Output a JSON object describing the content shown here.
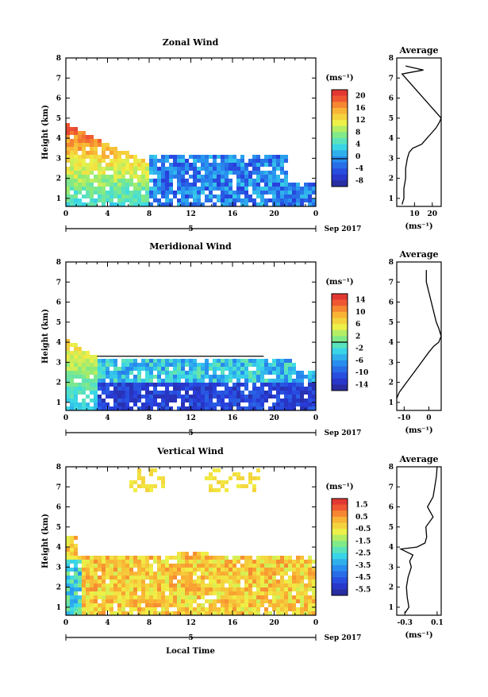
{
  "date_label": "Sep 2017",
  "day_label": "5",
  "xlabel": "Local Time",
  "chart_data": [
    {
      "type": "heatmap",
      "title": "Zonal Wind",
      "ylabel": "Height (km)",
      "xlabel": "",
      "x_ticks": [
        "0",
        "4",
        "8",
        "12",
        "16",
        "20",
        "0"
      ],
      "y_ticks": [
        "1",
        "2",
        "3",
        "4",
        "5",
        "6",
        "7",
        "8"
      ],
      "ylim": [
        0.6,
        8.0
      ],
      "xlim_hours": [
        0,
        24
      ],
      "colorbar": {
        "unit": "(ms⁻¹)",
        "ticks": [
          "20",
          "16",
          "12",
          "8",
          "4",
          "0",
          "-4",
          "-8"
        ],
        "range": [
          -10,
          22
        ]
      },
      "description_regions": [
        {
          "from_hour": 0,
          "to_hour": 8,
          "top_km": 4.8,
          "values": "8 to 20"
        },
        {
          "from_hour": 8,
          "to_hour": 20,
          "top_km": 3.5,
          "values": "-8 to 4"
        }
      ],
      "average": {
        "title": "Average",
        "xlabel": "(ms⁻¹)",
        "x_ticks": [
          "10",
          "20"
        ],
        "xlim": [
          0,
          25
        ],
        "heights": [
          0.7,
          1.0,
          1.5,
          2.0,
          2.5,
          3.0,
          3.3,
          3.5,
          3.7,
          4.0,
          4.2,
          4.5,
          4.8,
          5.0,
          7.2,
          7.4,
          7.6
        ],
        "values": [
          3,
          4,
          4,
          5,
          5,
          6,
          7,
          9,
          14,
          17,
          19,
          22,
          24,
          25,
          3,
          15,
          5
        ]
      }
    },
    {
      "type": "heatmap",
      "title": "Meridional Wind",
      "ylabel": "Height (km)",
      "xlabel": "",
      "x_ticks": [
        "0",
        "4",
        "8",
        "12",
        "16",
        "20",
        "0"
      ],
      "y_ticks": [
        "1",
        "2",
        "3",
        "4",
        "5",
        "6",
        "7",
        "8"
      ],
      "ylim": [
        0.6,
        8.0
      ],
      "xlim_hours": [
        0,
        24
      ],
      "colorbar": {
        "unit": "(ms⁻¹)",
        "ticks": [
          "14",
          "10",
          "6",
          "2",
          "-2",
          "-6",
          "-10",
          "-14"
        ],
        "range": [
          -16,
          16
        ]
      },
      "description_regions": [
        {
          "from_hour": 0,
          "to_hour": 3,
          "top_km": 4.2,
          "values": "-2 to 10"
        },
        {
          "from_hour": 3,
          "to_hour": 23,
          "top_km": 3.3,
          "values": "-14 to -2"
        }
      ],
      "average": {
        "title": "Average",
        "xlabel": "(ms⁻¹)",
        "x_ticks": [
          "-10",
          "0"
        ],
        "xlim": [
          -13,
          5
        ],
        "heights": [
          1.2,
          1.5,
          2.0,
          2.5,
          3.0,
          3.5,
          3.8,
          4.0,
          4.3,
          4.7,
          5.0,
          7.0,
          7.3,
          7.6
        ],
        "values": [
          -13,
          -12,
          -9,
          -6,
          -3,
          0,
          2,
          4,
          5,
          4,
          3,
          -1,
          -1,
          -1
        ]
      }
    },
    {
      "type": "heatmap",
      "title": "Vertical Wind",
      "ylabel": "Height (km)",
      "xlabel": "Local Time",
      "x_ticks": [
        "0",
        "4",
        "8",
        "12",
        "16",
        "20",
        "0"
      ],
      "y_ticks": [
        "1",
        "2",
        "3",
        "4",
        "5",
        "6",
        "7",
        "8"
      ],
      "ylim": [
        0.6,
        8.0
      ],
      "xlim_hours": [
        0,
        24
      ],
      "colorbar": {
        "unit": "(ms⁻¹)",
        "ticks": [
          "1.5",
          "0.5",
          "-0.5",
          "-1.5",
          "-2.5",
          "-3.5",
          "-4.5",
          "-5.5"
        ],
        "range": [
          -6,
          2
        ]
      },
      "description_regions": [
        {
          "from_hour": 0,
          "to_hour": 24,
          "top_km": 3.8,
          "values": "-1 to 1"
        }
      ],
      "average": {
        "title": "Average",
        "xlabel": "(ms⁻¹)",
        "x_ticks": [
          "-0.3",
          "0.1"
        ],
        "xlim": [
          -0.4,
          0.15
        ],
        "heights": [
          0.7,
          1.0,
          1.5,
          2.0,
          2.5,
          3.0,
          3.3,
          3.6,
          3.9,
          4.0,
          4.2,
          4.5,
          5.0,
          5.5,
          6.0,
          6.5,
          7.0,
          7.5,
          8.0
        ],
        "values": [
          -0.3,
          -0.25,
          -0.27,
          -0.28,
          -0.26,
          -0.22,
          -0.24,
          -0.2,
          -0.35,
          -0.15,
          -0.05,
          -0.03,
          -0.04,
          0.05,
          -0.02,
          0.05,
          0.07,
          0.09,
          0.1
        ]
      }
    }
  ]
}
